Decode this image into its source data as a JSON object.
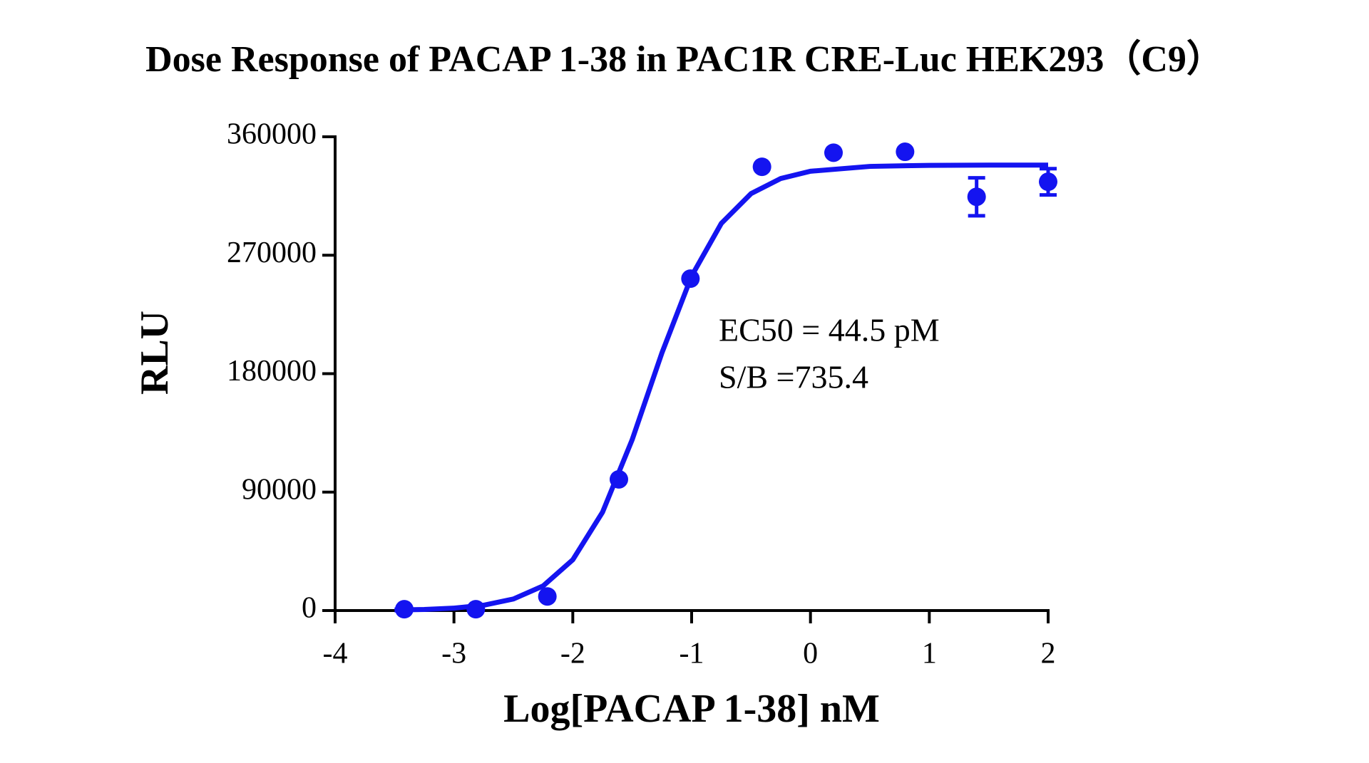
{
  "chart_data": {
    "type": "scatter",
    "title": "Dose Response of PACAP 1-38 in PAC1R CRE-Luc HEK293（C9）",
    "x_label": "Log[PACAP 1-38] nM",
    "y_label": "RLU",
    "annotations": [
      "EC50 = 44.5 pM",
      "S/B =735.4"
    ],
    "color": "#1414f0",
    "xlim": [
      -4,
      2
    ],
    "xticks": [
      -4,
      -3,
      -2,
      -1,
      0,
      1,
      2
    ],
    "ylim": [
      0,
      360000
    ],
    "yticks": [
      0,
      90000,
      180000,
      270000,
      360000
    ],
    "points": {
      "x": [
        -3.418,
        -2.816,
        -2.214,
        -1.612,
        -1.01,
        -0.408,
        0.194,
        0.796,
        1.398,
        2.0
      ],
      "values": [
        1000,
        1000,
        10700,
        99700,
        252200,
        337200,
        347900,
        348600,
        314400,
        325800
      ],
      "errors": [
        null,
        null,
        null,
        null,
        null,
        null,
        null,
        null,
        14400,
        10000
      ]
    },
    "fit": {
      "x": [
        -3.5,
        -3.25,
        -3.0,
        -2.75,
        -2.5,
        -2.25,
        -2.0,
        -1.75,
        -1.5,
        -1.25,
        -1.0,
        -0.75,
        -0.5,
        -0.25,
        0,
        0.5,
        1.0,
        1.5,
        2.0
      ],
      "values": [
        383,
        843,
        1849,
        4040,
        8763,
        18700,
        38600,
        74700,
        129900,
        195800,
        254200,
        294200,
        316800,
        328300,
        333800,
        337500,
        338300,
        338500,
        338500
      ]
    }
  }
}
